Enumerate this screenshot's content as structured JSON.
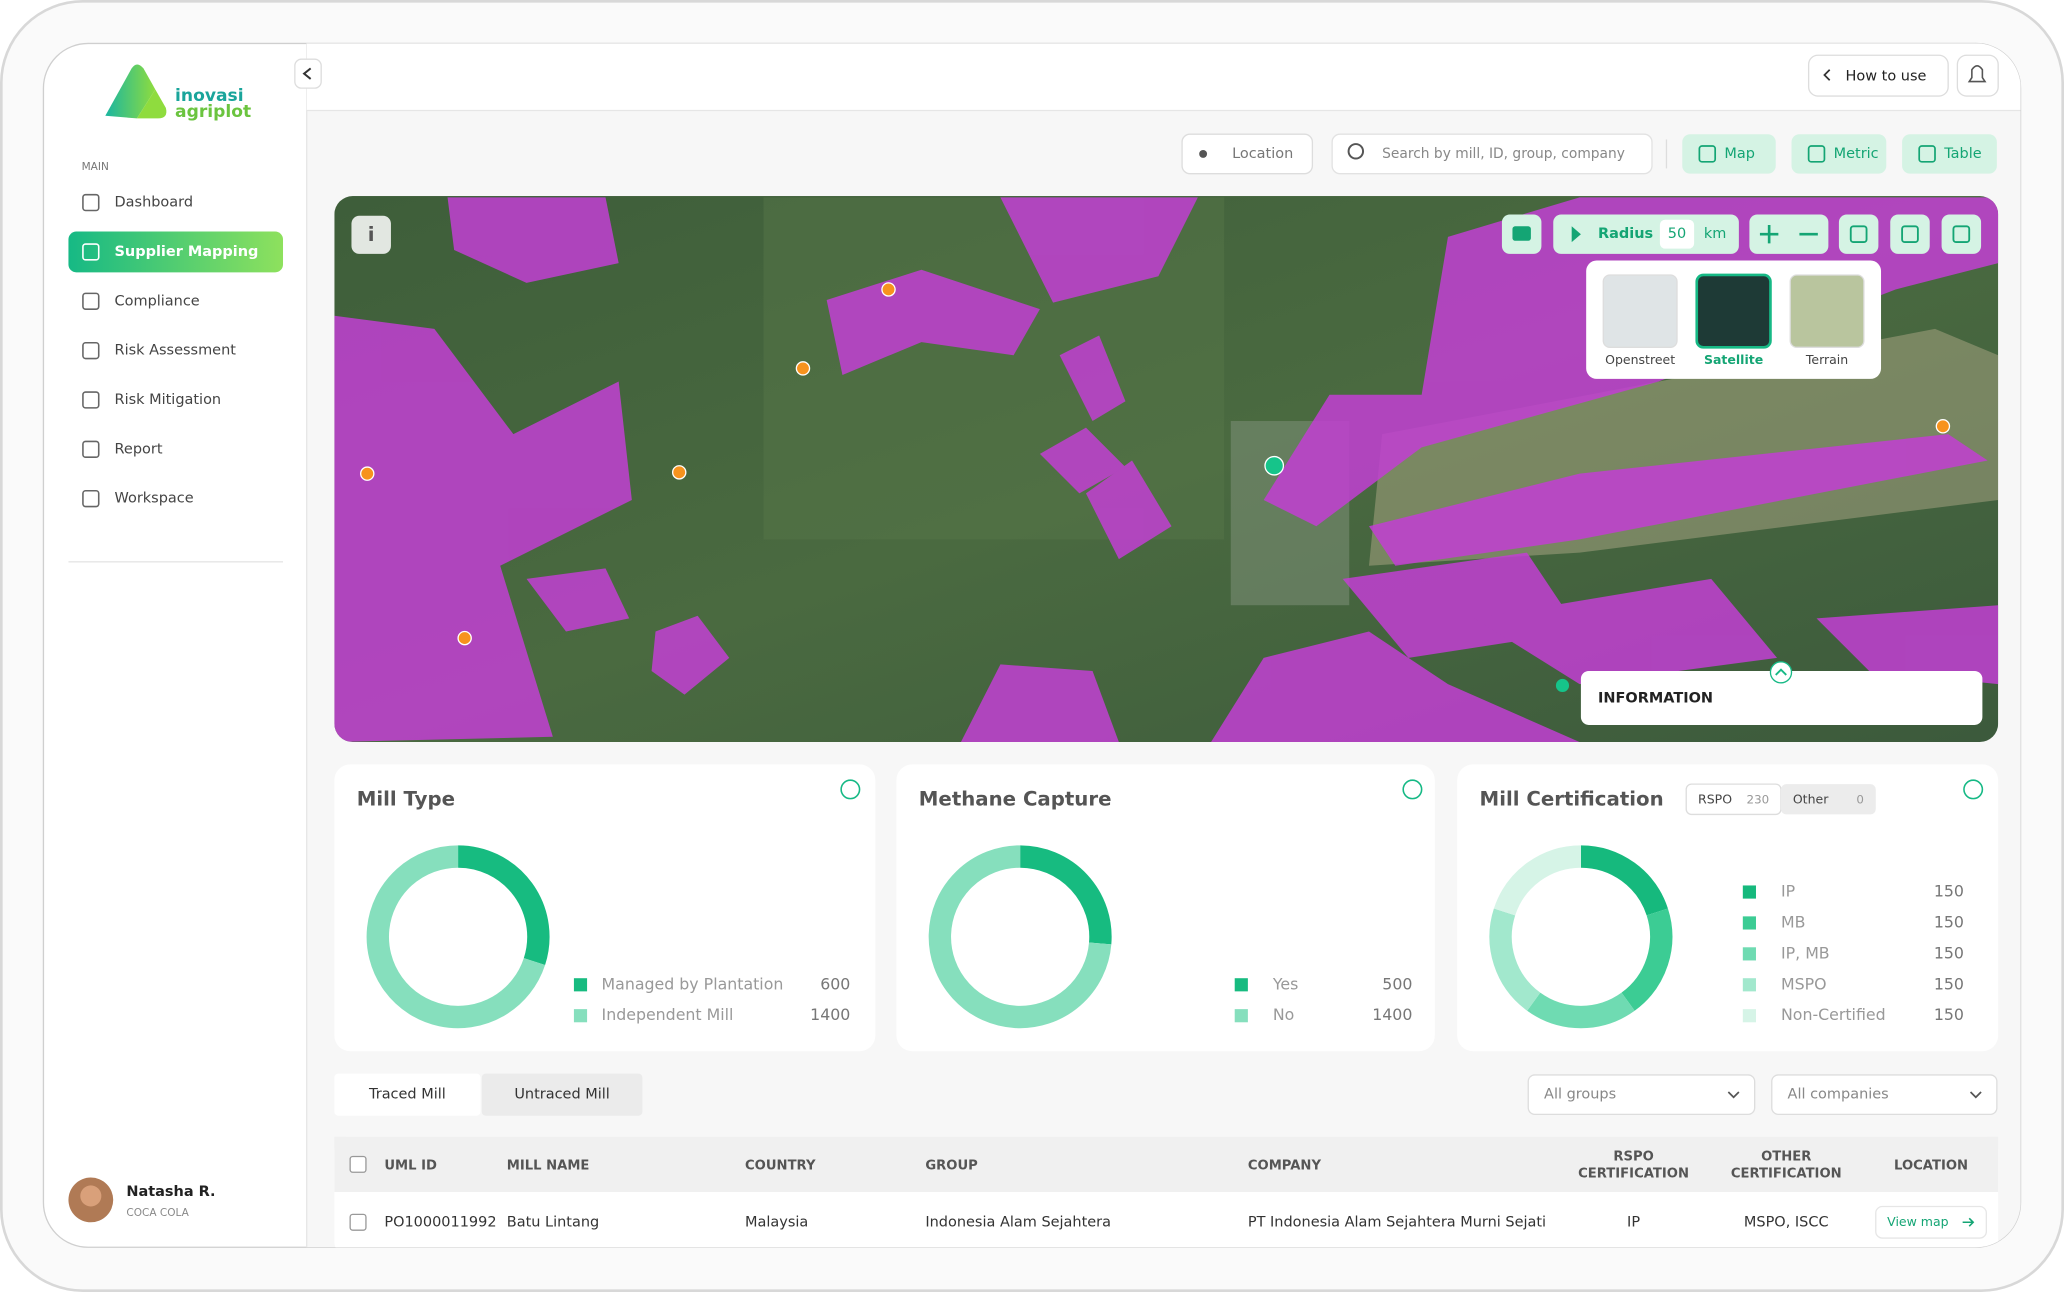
{
  "brand": {
    "line1": "inovasi",
    "line2": "agriplot"
  },
  "sidebar": {
    "section": "MAIN",
    "menu": [
      "Dashboard",
      "Supplier Mapping",
      "Compliance",
      "Risk Assessment",
      "Risk Mitigation",
      "Report",
      "Workspace"
    ],
    "active": 1,
    "user": {
      "name": "Natasha R.",
      "company": "COCA COLA"
    }
  },
  "header": {
    "how_to_use": "How to use"
  },
  "toolbar": {
    "location": "Location",
    "search_placeholder": "Search by mill, ID, group, company",
    "views": [
      "Map",
      "Metric",
      "Table"
    ]
  },
  "map": {
    "radius_label": "Radius",
    "radius": 50,
    "unit": "km",
    "layers": [
      "Openstreet",
      "Satellite",
      "Terrain"
    ],
    "active_layer": 1,
    "info": "INFORMATION"
  },
  "charts": [
    {
      "type": "donut",
      "title": "Mill Type",
      "series": [
        {
          "name": "Managed by Plantation",
          "value": 600,
          "color": "#17bb80"
        },
        {
          "name": "Independent Mill",
          "value": 1400,
          "color": "#86dfbd"
        }
      ]
    },
    {
      "type": "donut",
      "title": "Methane Capture",
      "series": [
        {
          "name": "Yes",
          "value": 500,
          "color": "#17bb80"
        },
        {
          "name": "No",
          "value": 1400,
          "color": "#86dfbd"
        }
      ]
    },
    {
      "type": "donut",
      "title": "Mill Certification",
      "tabs": [
        {
          "label": "RSPO",
          "count": 230
        },
        {
          "label": "Other",
          "count": 0
        }
      ],
      "series": [
        {
          "name": "IP",
          "value": 150,
          "color": "#16b97d"
        },
        {
          "name": "MB",
          "value": 150,
          "color": "#3ccc94"
        },
        {
          "name": "IP, MB",
          "value": 150,
          "color": "#6fdbb2"
        },
        {
          "name": "MSPO",
          "value": 150,
          "color": "#a2e8cd"
        },
        {
          "name": "Non-Certified",
          "value": 150,
          "color": "#d6f4e7"
        }
      ]
    }
  ],
  "tabs": [
    "Traced Mill",
    "Untraced Mill"
  ],
  "filters": [
    "All groups",
    "All companies"
  ],
  "table": {
    "columns": [
      "UML ID",
      "MILL NAME",
      "COUNTRY",
      "GROUP",
      "COMPANY",
      "RSPO CERTIFICATION",
      "OTHER CERTIFICATION",
      "LOCATION"
    ],
    "rows": [
      [
        "PO1000011992",
        "Batu Lintang",
        "Malaysia",
        "Indonesia Alam Sejahtera",
        "PT Indonesia Alam Sejahtera Murni Sejati",
        "IP",
        "MSPO, ISCC",
        "View map"
      ]
    ]
  }
}
